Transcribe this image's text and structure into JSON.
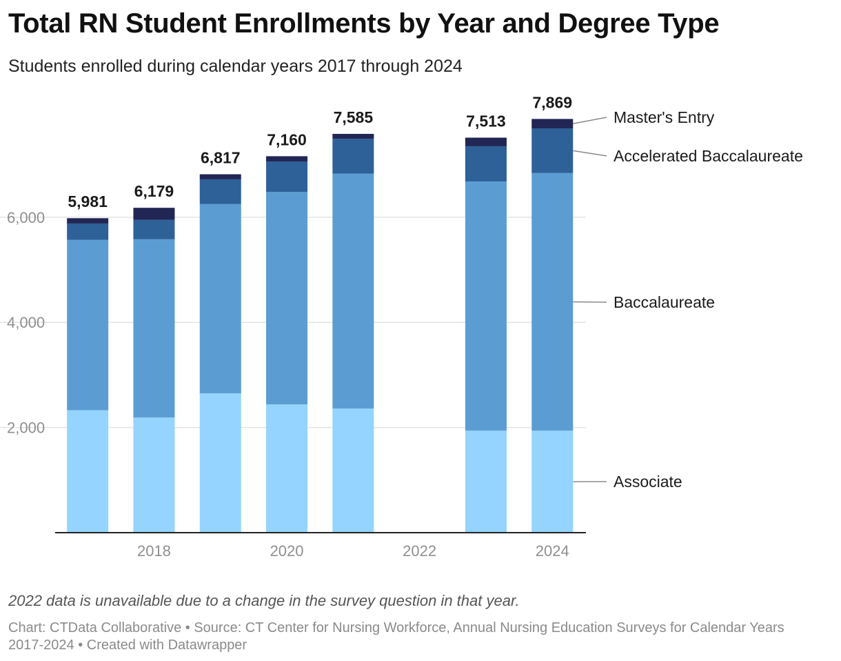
{
  "title": "Total RN Student Enrollments by Year and Degree Type",
  "subtitle": "Students enrolled during calendar years 2017 through 2024",
  "note": "2022 data is unavailable due to a change in the survey question in that year.",
  "footer": "Chart: CTData Collaborative • Source: CT Center for Nursing Workforce, Annual Nursing Education Surveys for Calendar Years 2017-2024 • Created with Datawrapper",
  "chart_data": {
    "type": "bar",
    "stacked": true,
    "categories": [
      "2017",
      "2018",
      "2019",
      "2020",
      "2021",
      "2022",
      "2023",
      "2024"
    ],
    "x_tick_labels": [
      "2018",
      "2020",
      "2022",
      "2024"
    ],
    "y_ticks": [
      2000,
      4000,
      6000
    ],
    "y_tick_labels": [
      "2,000",
      "4,000",
      "6,000"
    ],
    "ylim": [
      0,
      8000
    ],
    "grid": true,
    "legend": "direct-labels-right",
    "series": [
      {
        "name": "Associate",
        "color": "#94d4ff",
        "values": [
          2330,
          2190,
          2650,
          2440,
          2360,
          null,
          1940,
          1940
        ]
      },
      {
        "name": "Baccalaureate",
        "color": "#5b9dd3",
        "values": [
          3240,
          3390,
          3600,
          4040,
          4470,
          null,
          4740,
          4900
        ]
      },
      {
        "name": "Accelerated Baccalaureate",
        "color": "#2d6198",
        "values": [
          310,
          370,
          470,
          580,
          660,
          null,
          670,
          850
        ]
      },
      {
        "name": "Master's Entry",
        "color": "#222654",
        "values": [
          101,
          229,
          97,
          100,
          95,
          null,
          163,
          179
        ]
      }
    ],
    "totals": [
      5981,
      6179,
      6817,
      7160,
      7585,
      null,
      7513,
      7869
    ],
    "total_labels": [
      "5,981",
      "6,179",
      "6,817",
      "7,160",
      "7,585",
      "",
      "7,513",
      "7,869"
    ]
  }
}
